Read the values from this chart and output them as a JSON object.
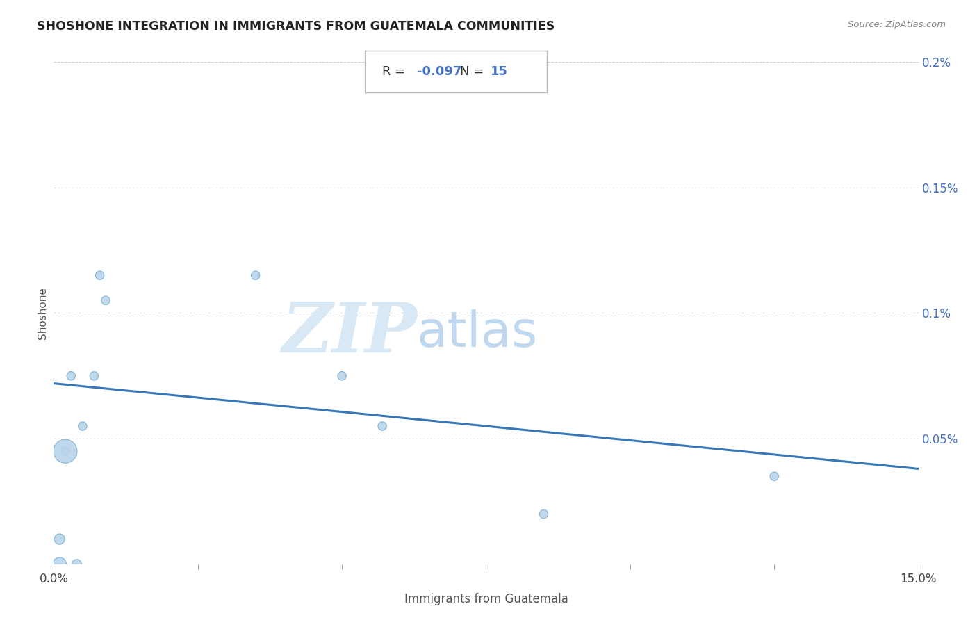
{
  "title": "SHOSHONE INTEGRATION IN IMMIGRANTS FROM GUATEMALA COMMUNITIES",
  "source": "Source: ZipAtlas.com",
  "xlabel": "Immigrants from Guatemala",
  "ylabel": "Shoshone",
  "R": -0.097,
  "N": 15,
  "xlim": [
    0.0,
    0.15
  ],
  "ylim": [
    0.0,
    0.002
  ],
  "yticks": [
    0.0,
    0.0005,
    0.001,
    0.0015,
    0.002
  ],
  "ytick_labels": [
    "",
    "0.05%",
    "0.1%",
    "0.15%",
    "0.2%"
  ],
  "scatter_x": [
    0.001,
    0.001,
    0.002,
    0.002,
    0.003,
    0.004,
    0.005,
    0.007,
    0.008,
    0.009,
    0.035,
    0.05,
    0.057,
    0.085,
    0.125
  ],
  "scatter_y": [
    0.0,
    0.0001,
    0.00045,
    0.00045,
    0.00075,
    0.0,
    0.00055,
    0.00075,
    0.00115,
    0.00105,
    0.00115,
    0.00075,
    0.00055,
    0.0002,
    0.00035
  ],
  "scatter_sizes": [
    200,
    120,
    80,
    600,
    80,
    100,
    80,
    80,
    80,
    80,
    80,
    80,
    80,
    80,
    80
  ],
  "dot_color": "#b8d4ea",
  "dot_edgecolor": "#7aaecc",
  "line_color": "#3677b5",
  "line_start_x": 0.0,
  "line_start_y": 0.00072,
  "line_end_x": 0.15,
  "line_end_y": 0.00038,
  "grid_color": "#c8c8c8",
  "title_color": "#222222",
  "axis_label_color": "#555555",
  "tick_color_right": "#4472c4",
  "watermark_zip": "ZIP",
  "watermark_atlas": "atlas",
  "watermark_color_zip": "#d8e8f4",
  "watermark_color_atlas": "#c0d8ee",
  "stat_border_color": "#bbbbbb",
  "R_label_color": "#333333",
  "N_label_color": "#4472c4",
  "xtick_positions": [
    0.0,
    0.025,
    0.05,
    0.075,
    0.1,
    0.125,
    0.15
  ]
}
